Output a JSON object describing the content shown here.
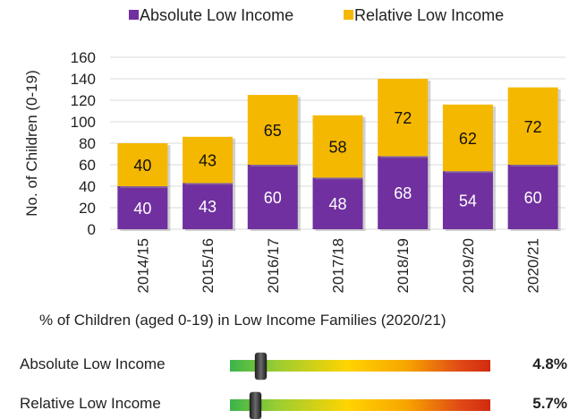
{
  "chart_data": {
    "type": "bar",
    "stacked": true,
    "categories": [
      "2014/15",
      "2015/16",
      "2016/17",
      "2017/18",
      "2018/19",
      "2019/20",
      "2020/21"
    ],
    "series": [
      {
        "name": "Absolute Low Income",
        "values": [
          40,
          43,
          60,
          48,
          68,
          54,
          60
        ],
        "color": "#7030a0"
      },
      {
        "name": "Relative Low Income",
        "values": [
          40,
          43,
          65,
          58,
          72,
          62,
          72
        ],
        "color": "#f5b800"
      }
    ],
    "ylabel": "No. of Children (0-19)",
    "ylim": [
      0,
      160
    ],
    "yticks": [
      0,
      20,
      40,
      60,
      80,
      100,
      120,
      140,
      160
    ],
    "grid": true,
    "legend": "top"
  },
  "gauges": {
    "title": "% of Children (aged 0-19) in Low Income Families (2020/21)",
    "items": [
      {
        "label": "Absolute Low Income",
        "value_text": "4.8%",
        "level": 0.12
      },
      {
        "label": "Relative Low Income",
        "value_text": "5.7%",
        "level": 0.1
      }
    ]
  }
}
